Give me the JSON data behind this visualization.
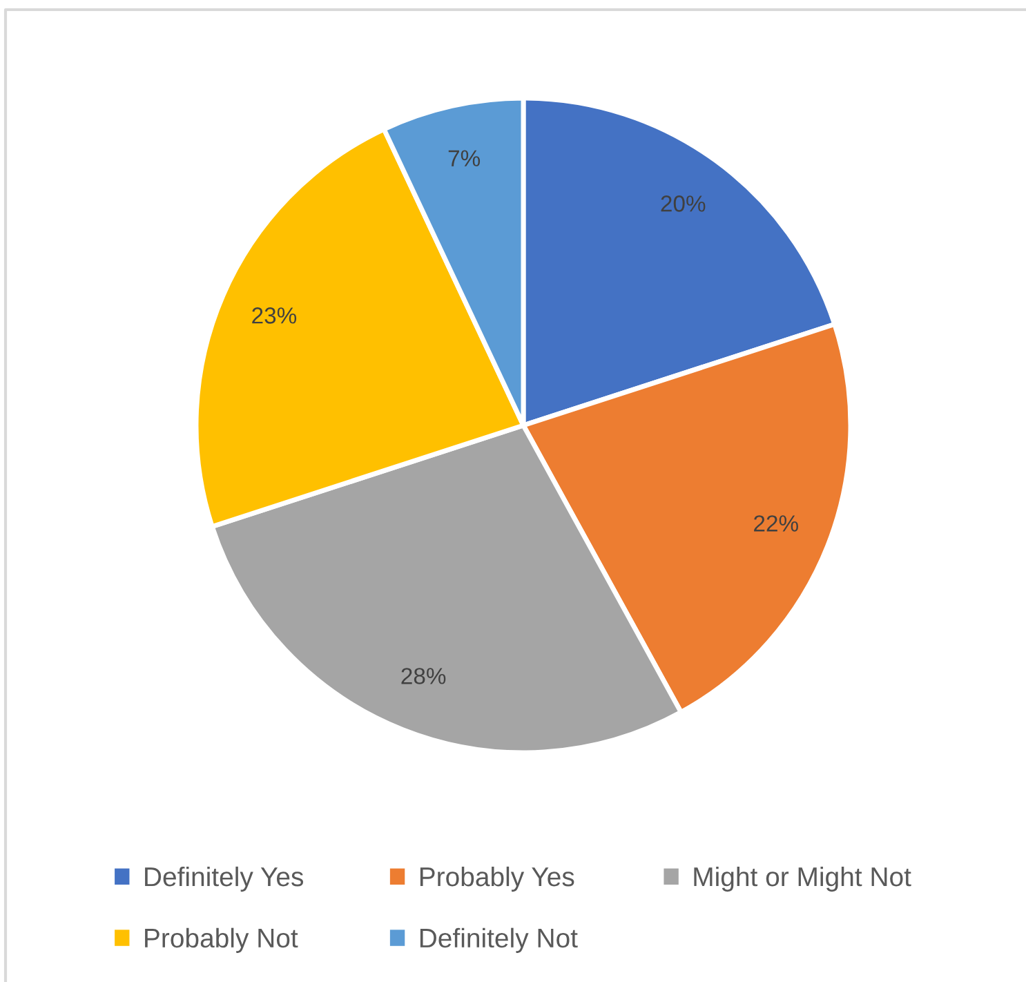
{
  "chart_data": {
    "type": "pie",
    "categories": [
      "Definitely Yes",
      "Probably Yes",
      "Might or Might Not",
      "Probably Not",
      "Definitely Not"
    ],
    "values": [
      20,
      22,
      28,
      23,
      7
    ],
    "colors": [
      "#4472c4",
      "#ed7d31",
      "#a5a5a5",
      "#ffc000",
      "#5b9bd5"
    ],
    "value_labels": [
      "20%",
      "22%",
      "28%",
      "23%",
      "7%"
    ],
    "legend": "bottom"
  }
}
